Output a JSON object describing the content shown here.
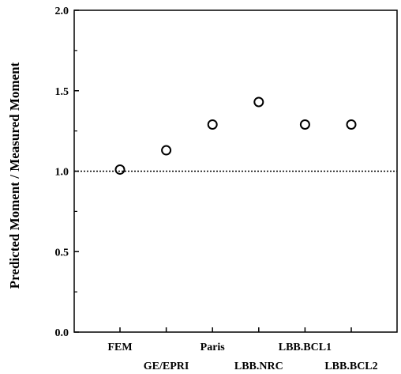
{
  "chart_data": {
    "type": "scatter",
    "title": "",
    "xlabel": "",
    "ylabel": "Predicted Moment / Measured Moment",
    "categories": [
      "FEM",
      "GE/EPRI",
      "Paris",
      "LBB.NRC",
      "LBB.BCL1",
      "LBB.BCL2"
    ],
    "values": [
      1.01,
      1.13,
      1.29,
      1.43,
      1.29,
      1.29
    ],
    "ylim": [
      0.0,
      2.0
    ],
    "yticks": [
      "0.0",
      "0.5",
      "1.0",
      "1.5",
      "2.0"
    ],
    "reference_line": {
      "y": 1.0,
      "style": "dotted"
    },
    "marker": "open-circle",
    "grid": false,
    "legend": "none"
  }
}
